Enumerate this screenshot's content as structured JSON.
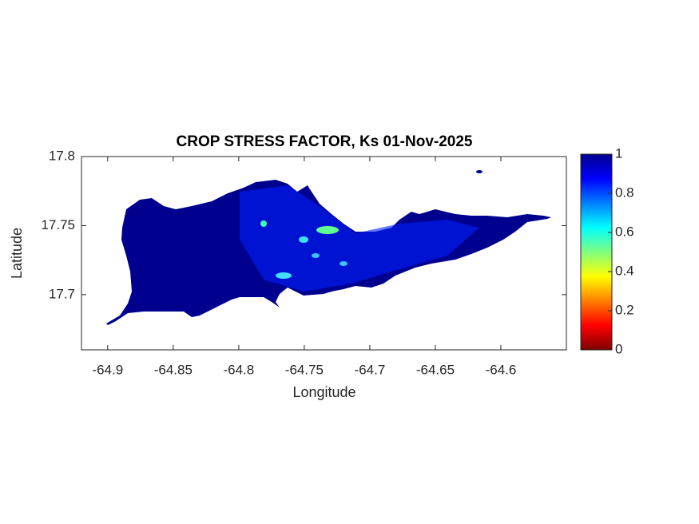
{
  "chart_data": {
    "type": "map",
    "title": "CROP STRESS FACTOR, Ks  01-Nov-2025",
    "xlabel": "Longitude",
    "ylabel": "Latitude",
    "xlim": [
      -64.92,
      -64.55
    ],
    "xticks": [
      -64.9,
      -64.85,
      -64.8,
      -64.75,
      -64.7,
      -64.65,
      -64.6
    ],
    "ylim": [
      17.66,
      17.8
    ],
    "yticks": [
      17.7,
      17.75,
      17.8
    ],
    "colorbar": {
      "lim": [
        0,
        1
      ],
      "ticks": [
        0,
        0.2,
        0.4,
        0.6,
        0.8,
        1
      ]
    }
  }
}
